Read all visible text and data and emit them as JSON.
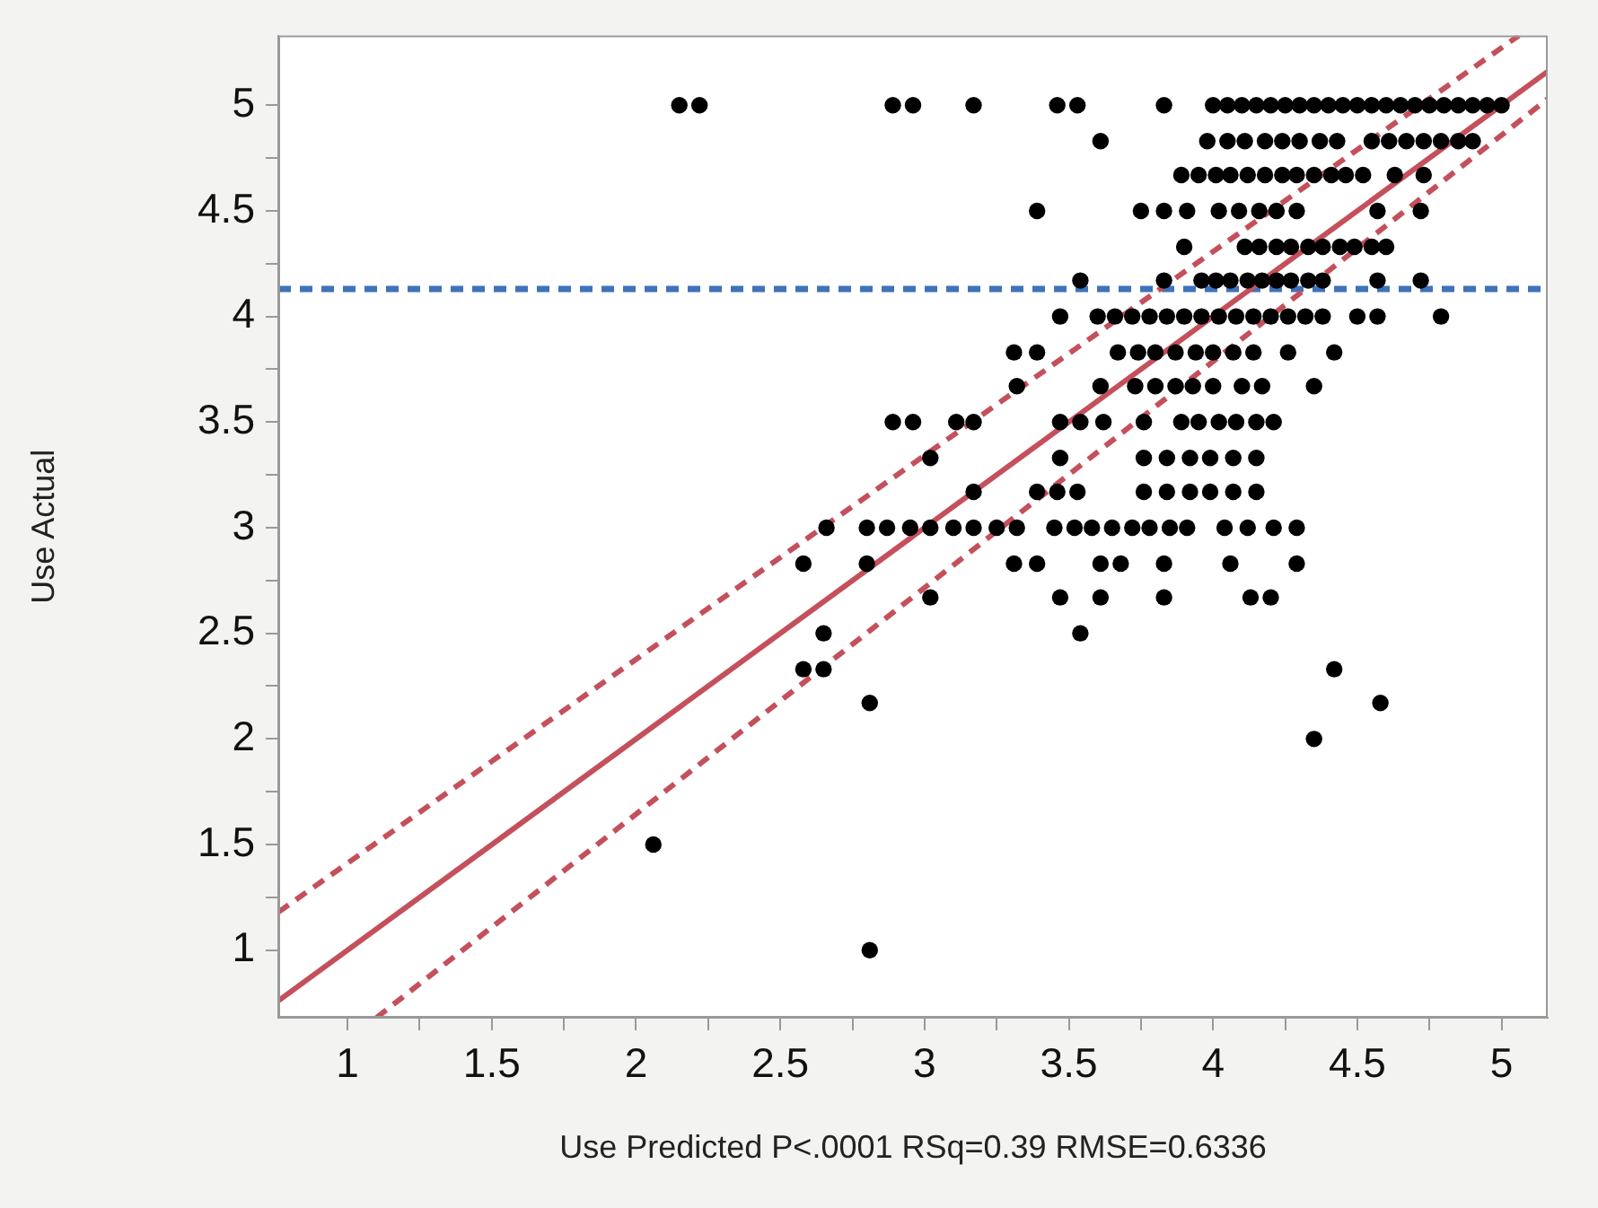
{
  "chart_data": {
    "type": "scatter",
    "xlabel": "Use Predicted P<.0001 RSq=0.39 RMSE=0.6336",
    "ylabel": "Use Actual",
    "xlim": [
      0.76,
      5.16
    ],
    "ylim": [
      0.68,
      5.33
    ],
    "xticks": [
      1,
      {
        "value": 1.25,
        "label": null
      },
      1.5,
      {
        "value": 1.75,
        "label": null
      },
      2,
      {
        "value": 2.25,
        "label": null
      },
      2.5,
      {
        "value": 2.75,
        "label": null
      },
      3,
      {
        "value": 3.25,
        "label": null
      },
      3.5,
      {
        "value": 3.75,
        "label": null
      },
      4,
      {
        "value": 4.25,
        "label": null
      },
      4.5,
      {
        "value": 4.75,
        "label": null
      },
      5
    ],
    "yticks": [
      1,
      {
        "value": 1.25,
        "label": null
      },
      1.5,
      {
        "value": 1.75,
        "label": null
      },
      2,
      {
        "value": 2.25,
        "label": null
      },
      2.5,
      {
        "value": 2.75,
        "label": null
      },
      3,
      {
        "value": 3.25,
        "label": null
      },
      3.5,
      {
        "value": 3.75,
        "label": null
      },
      4,
      {
        "value": 4.25,
        "label": null
      },
      4.5,
      {
        "value": 4.75,
        "label": null
      },
      5
    ],
    "grid": false,
    "legend": false,
    "ref_lines": [
      {
        "axis": "y",
        "value": 4.13,
        "color": "#3f72b8",
        "line_style": "dashed"
      }
    ],
    "series": [
      {
        "type": "scatter",
        "color": "#000000",
        "marker": "circle",
        "x": [
          2.15,
          2.22,
          2.89,
          2.96,
          3.17,
          3.46,
          3.53,
          3.83,
          4.0,
          4.05,
          4.1,
          4.15,
          4.2,
          4.25,
          4.3,
          4.35,
          4.4,
          4.45,
          4.5,
          4.55,
          4.6,
          4.65,
          4.7,
          4.75,
          4.8,
          4.85,
          4.9,
          4.95,
          5.0,
          3.61,
          3.98,
          4.05,
          4.11,
          4.18,
          4.24,
          4.3,
          4.37,
          4.43,
          4.55,
          4.61,
          4.67,
          4.73,
          4.79,
          4.85,
          4.9,
          3.89,
          3.95,
          4.01,
          4.06,
          4.12,
          4.18,
          4.24,
          4.29,
          4.35,
          4.41,
          4.46,
          4.52,
          4.63,
          4.73,
          3.39,
          3.75,
          3.83,
          3.91,
          4.02,
          4.09,
          4.16,
          4.22,
          4.29,
          4.57,
          4.72,
          3.9,
          4.11,
          4.16,
          4.22,
          4.27,
          4.33,
          4.38,
          4.44,
          4.49,
          4.55,
          4.6,
          3.54,
          3.83,
          3.96,
          4.01,
          4.06,
          4.12,
          4.17,
          4.22,
          4.27,
          4.33,
          4.38,
          4.57,
          4.72,
          3.47,
          3.6,
          3.66,
          3.72,
          3.78,
          3.84,
          3.9,
          3.96,
          4.02,
          4.08,
          4.14,
          4.2,
          4.26,
          4.32,
          4.38,
          4.5,
          4.57,
          4.79,
          3.31,
          3.39,
          3.67,
          3.74,
          3.8,
          3.87,
          3.94,
          4.0,
          4.07,
          4.14,
          4.26,
          4.42,
          3.32,
          3.61,
          3.73,
          3.8,
          3.87,
          3.93,
          4.0,
          4.1,
          4.17,
          4.35,
          2.89,
          2.96,
          3.11,
          3.17,
          3.47,
          3.54,
          3.62,
          3.76,
          3.89,
          3.95,
          4.02,
          4.08,
          4.15,
          4.21,
          3.02,
          3.47,
          3.76,
          3.84,
          3.92,
          3.99,
          4.07,
          4.15,
          3.17,
          3.39,
          3.46,
          3.53,
          3.76,
          3.84,
          3.92,
          3.99,
          4.07,
          4.15,
          2.66,
          2.8,
          2.87,
          2.95,
          3.02,
          3.1,
          3.17,
          3.25,
          3.32,
          3.45,
          3.52,
          3.58,
          3.65,
          3.72,
          3.78,
          3.85,
          3.91,
          4.04,
          4.12,
          4.21,
          4.29,
          2.58,
          2.8,
          3.31,
          3.39,
          3.61,
          3.68,
          3.83,
          4.06,
          4.29,
          3.02,
          3.47,
          3.61,
          3.83,
          4.13,
          4.2,
          2.65,
          3.54,
          2.58,
          2.65,
          4.42,
          2.81,
          4.58,
          4.35,
          2.06,
          2.81
        ],
        "values": [
          5,
          5,
          5,
          5,
          5,
          5,
          5,
          5,
          5,
          5,
          5,
          5,
          5,
          5,
          5,
          5,
          5,
          5,
          5,
          5,
          5,
          5,
          5,
          5,
          5,
          5,
          5,
          5,
          5,
          4.83,
          4.83,
          4.83,
          4.83,
          4.83,
          4.83,
          4.83,
          4.83,
          4.83,
          4.83,
          4.83,
          4.83,
          4.83,
          4.83,
          4.83,
          4.83,
          4.67,
          4.67,
          4.67,
          4.67,
          4.67,
          4.67,
          4.67,
          4.67,
          4.67,
          4.67,
          4.67,
          4.67,
          4.67,
          4.67,
          4.5,
          4.5,
          4.5,
          4.5,
          4.5,
          4.5,
          4.5,
          4.5,
          4.5,
          4.5,
          4.5,
          4.33,
          4.33,
          4.33,
          4.33,
          4.33,
          4.33,
          4.33,
          4.33,
          4.33,
          4.33,
          4.33,
          4.17,
          4.17,
          4.17,
          4.17,
          4.17,
          4.17,
          4.17,
          4.17,
          4.17,
          4.17,
          4.17,
          4.17,
          4.17,
          4,
          4,
          4,
          4,
          4,
          4,
          4,
          4,
          4,
          4,
          4,
          4,
          4,
          4,
          4,
          4,
          4,
          4,
          3.83,
          3.83,
          3.83,
          3.83,
          3.83,
          3.83,
          3.83,
          3.83,
          3.83,
          3.83,
          3.83,
          3.83,
          3.67,
          3.67,
          3.67,
          3.67,
          3.67,
          3.67,
          3.67,
          3.67,
          3.67,
          3.67,
          3.5,
          3.5,
          3.5,
          3.5,
          3.5,
          3.5,
          3.5,
          3.5,
          3.5,
          3.5,
          3.5,
          3.5,
          3.5,
          3.5,
          3.33,
          3.33,
          3.33,
          3.33,
          3.33,
          3.33,
          3.33,
          3.33,
          3.17,
          3.17,
          3.17,
          3.17,
          3.17,
          3.17,
          3.17,
          3.17,
          3.17,
          3.17,
          3,
          3,
          3,
          3,
          3,
          3,
          3,
          3,
          3,
          3,
          3,
          3,
          3,
          3,
          3,
          3,
          3,
          3,
          3,
          3,
          3,
          2.83,
          2.83,
          2.83,
          2.83,
          2.83,
          2.83,
          2.83,
          2.83,
          2.83,
          2.67,
          2.67,
          2.67,
          2.67,
          2.67,
          2.67,
          2.5,
          2.5,
          2.33,
          2.33,
          2.33,
          2.17,
          2.17,
          2,
          1.5,
          1
        ]
      },
      {
        "type": "line",
        "color": "#c4505c",
        "marker": "none",
        "line_style": "solid",
        "x": [
          0.76,
          5.16
        ],
        "values": [
          0.76,
          5.16
        ]
      },
      {
        "type": "line",
        "color": "#c4505c",
        "marker": "none",
        "line_style": "dashed",
        "x": [
          0.76,
          5.06
        ],
        "values": [
          1.18,
          5.33
        ]
      },
      {
        "type": "line",
        "color": "#c4505c",
        "marker": "none",
        "line_style": "dashed",
        "x": [
          1.1,
          5.16
        ],
        "values": [
          0.68,
          5.03
        ]
      }
    ]
  }
}
